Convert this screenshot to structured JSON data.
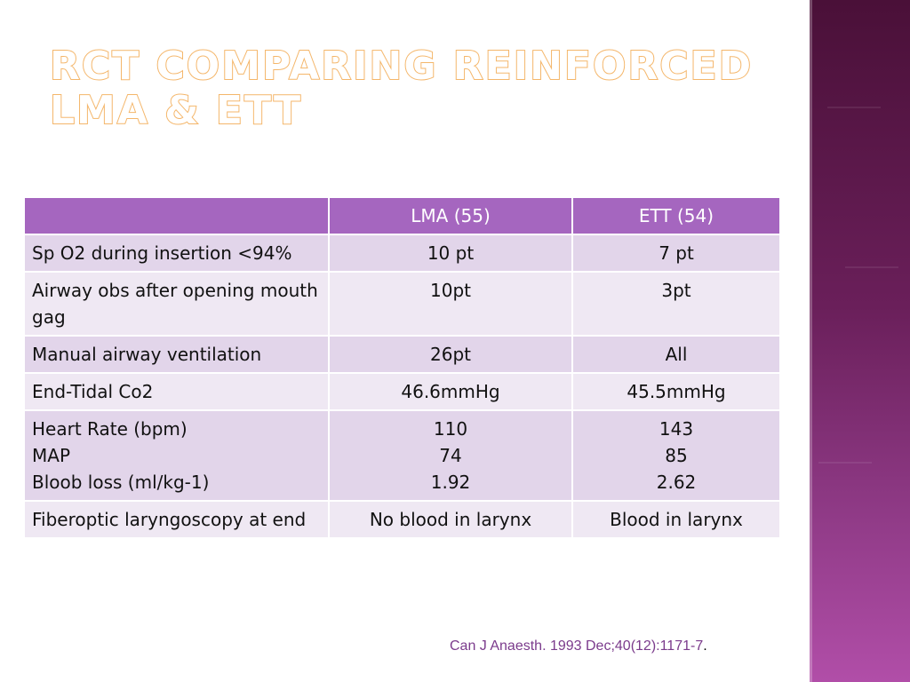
{
  "slide": {
    "title": "RCT comparing reinforced LMA & ETT",
    "table": {
      "headers": [
        "",
        "LMA (55)",
        "ETT (54)"
      ],
      "rows": [
        {
          "label": [
            "Sp O2 during insertion <94%"
          ],
          "lma": [
            "10 pt"
          ],
          "ett": [
            "7 pt"
          ]
        },
        {
          "label": [
            "Airway obs after opening mouth gag"
          ],
          "lma": [
            "10pt"
          ],
          "ett": [
            "3pt"
          ]
        },
        {
          "label": [
            "Manual airway ventilation"
          ],
          "lma": [
            "26pt"
          ],
          "ett": [
            "All"
          ]
        },
        {
          "label": [
            "End-Tidal Co2"
          ],
          "lma": [
            "46.6mmHg"
          ],
          "ett": [
            "45.5mmHg"
          ]
        },
        {
          "label": [
            "Heart Rate (bpm)",
            "MAP",
            "Bloob loss (ml/kg-1)"
          ],
          "lma": [
            "110",
            "74",
            "1.92"
          ],
          "ett": [
            "143",
            "85",
            "2.62"
          ]
        },
        {
          "label": [
            "Fiberoptic laryngoscopy at end"
          ],
          "lma": [
            "No blood in larynx"
          ],
          "ett": [
            "Blood in larynx"
          ]
        }
      ]
    },
    "citation": {
      "text": "Can J Anaesth. 1993 Dec;40(12):1171-7",
      "suffix": "."
    }
  },
  "colors": {
    "header_bg": "#a566bf",
    "row_odd": "#e2d5ea",
    "row_even": "#efe8f3",
    "title_outline": "#f4b66a",
    "side_band": "#6a1f5a",
    "citation": "#7b3b8c"
  }
}
